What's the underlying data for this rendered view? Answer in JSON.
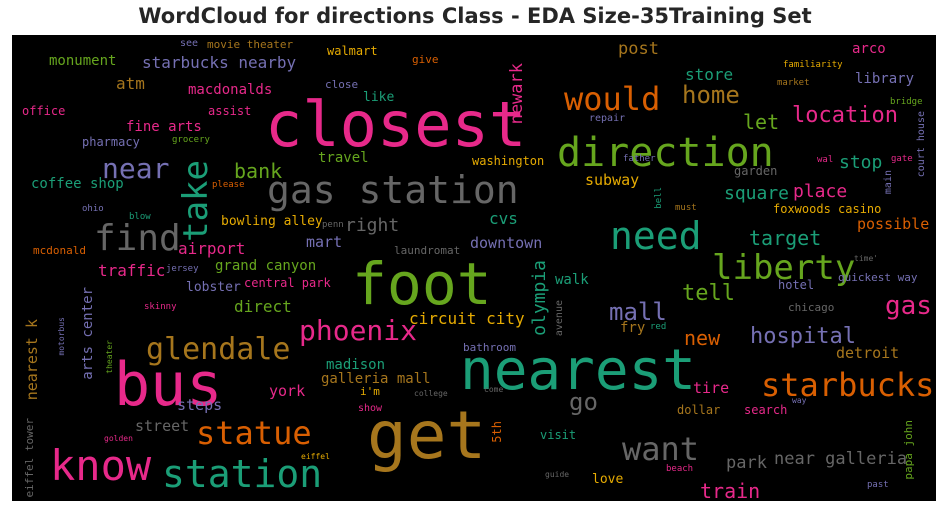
{
  "title": "WordCloud for directions Class - EDA Size-35Training Set",
  "words": [
    {
      "id": "closest",
      "text": "closest",
      "color": "#e7298a"
    },
    {
      "id": "nearest",
      "text": "nearest",
      "color": "#1b9e77"
    },
    {
      "id": "get",
      "text": "get",
      "color": "#a6761d"
    },
    {
      "id": "foot",
      "text": "foot",
      "color": "#66a61e"
    },
    {
      "id": "bus",
      "text": "bus",
      "color": "#e7298a"
    },
    {
      "id": "direction",
      "text": "direction",
      "color": "#66a61e"
    },
    {
      "id": "gas-station",
      "text": "gas station",
      "color": "#666666"
    },
    {
      "id": "know",
      "text": "know",
      "color": "#e7298a"
    },
    {
      "id": "station",
      "text": "station",
      "color": "#1b9e77"
    },
    {
      "id": "need",
      "text": "need",
      "color": "#1b9e77"
    },
    {
      "id": "find",
      "text": "find",
      "color": "#666666"
    },
    {
      "id": "take",
      "text": "take",
      "color": "#1b9e77"
    },
    {
      "id": "liberty",
      "text": "liberty",
      "color": "#66a61e"
    },
    {
      "id": "starbucks",
      "text": "starbucks",
      "color": "#d95f02"
    },
    {
      "id": "statue",
      "text": "statue",
      "color": "#d95f02"
    },
    {
      "id": "glendale",
      "text": "glendale",
      "color": "#a6761d"
    },
    {
      "id": "would",
      "text": "would",
      "color": "#d95f02"
    },
    {
      "id": "want",
      "text": "want",
      "color": "#666666"
    },
    {
      "id": "near",
      "text": "near",
      "color": "#7570b3"
    },
    {
      "id": "phoenix",
      "text": "phoenix",
      "color": "#e7298a"
    },
    {
      "id": "gas",
      "text": "gas",
      "color": "#e7298a"
    },
    {
      "id": "home",
      "text": "home",
      "color": "#a6761d"
    },
    {
      "id": "location",
      "text": "location",
      "color": "#e7298a"
    },
    {
      "id": "mall",
      "text": "mall",
      "color": "#7570b3"
    },
    {
      "id": "tell",
      "text": "tell",
      "color": "#66a61e"
    },
    {
      "id": "go",
      "text": "go",
      "color": "#666666"
    },
    {
      "id": "hospital",
      "text": "hospital",
      "color": "#7570b3"
    },
    {
      "id": "target",
      "text": "target",
      "color": "#1b9e77"
    },
    {
      "id": "new",
      "text": "new",
      "color": "#d95f02"
    },
    {
      "id": "train",
      "text": "train",
      "color": "#e7298a"
    },
    {
      "id": "bank",
      "text": "bank",
      "color": "#66a61e"
    },
    {
      "id": "find-unused",
      "text": "",
      "color": "#000000"
    },
    {
      "id": "square",
      "text": "square",
      "color": "#1b9e77"
    },
    {
      "id": "place",
      "text": "place",
      "color": "#e7298a"
    },
    {
      "id": "let",
      "text": "let",
      "color": "#66a61e"
    },
    {
      "id": "stop",
      "text": "stop",
      "color": "#1b9e77"
    },
    {
      "id": "store",
      "text": "store",
      "color": "#1b9e77"
    },
    {
      "id": "post",
      "text": "post",
      "color": "#a6761d"
    },
    {
      "id": "right",
      "text": "right",
      "color": "#666666"
    },
    {
      "id": "olympia",
      "text": "olympia",
      "color": "#1b9e77"
    },
    {
      "id": "newark",
      "text": "newark",
      "color": "#e7298a"
    },
    {
      "id": "park",
      "text": "park",
      "color": "#666666"
    },
    {
      "id": "near-galleria",
      "text": "near galleria",
      "color": "#666666"
    },
    {
      "id": "starbucks-nearby",
      "text": "starbucks nearby",
      "color": "#7570b3"
    },
    {
      "id": "airport",
      "text": "airport",
      "color": "#e7298a"
    },
    {
      "id": "traffic",
      "text": "traffic",
      "color": "#e7298a"
    },
    {
      "id": "cvs",
      "text": "cvs",
      "color": "#1b9e77"
    },
    {
      "id": "downtown",
      "text": "downtown",
      "color": "#7570b3"
    },
    {
      "id": "subway",
      "text": "subway",
      "color": "#e6ab02"
    },
    {
      "id": "atm",
      "text": "atm",
      "color": "#a6761d"
    },
    {
      "id": "fine-arts",
      "text": "fine arts",
      "color": "#e7298a"
    },
    {
      "id": "macdonalds",
      "text": "macdonalds",
      "color": "#e7298a"
    },
    {
      "id": "monument",
      "text": "monument",
      "color": "#66a61e"
    },
    {
      "id": "coffee-shop",
      "text": "coffee shop",
      "color": "#1b9e77"
    },
    {
      "id": "bowling-alley",
      "text": "bowling alley",
      "color": "#e6ab02"
    },
    {
      "id": "grand-canyon",
      "text": "grand canyon",
      "color": "#66a61e"
    },
    {
      "id": "mart",
      "text": "mart",
      "color": "#7570b3"
    },
    {
      "id": "lobster",
      "text": "lobster",
      "color": "#7570b3"
    },
    {
      "id": "central-park",
      "text": "central park",
      "color": "#e7298a"
    },
    {
      "id": "direct",
      "text": "direct",
      "color": "#66a61e"
    },
    {
      "id": "circuit-city",
      "text": "circuit city",
      "color": "#e6ab02"
    },
    {
      "id": "madison",
      "text": "madison",
      "color": "#1b9e77"
    },
    {
      "id": "galleria-mall",
      "text": "galleria mall",
      "color": "#a6761d"
    },
    {
      "id": "york",
      "text": "york",
      "color": "#e7298a"
    },
    {
      "id": "steps",
      "text": "steps",
      "color": "#7570b3"
    },
    {
      "id": "street",
      "text": "street",
      "color": "#666666"
    },
    {
      "id": "arts-center",
      "text": "arts center",
      "color": "#7570b3"
    },
    {
      "id": "nearest-k",
      "text": "nearest k",
      "color": "#a6761d"
    },
    {
      "id": "walk",
      "text": "walk",
      "color": "#1b9e77"
    },
    {
      "id": "fry",
      "text": "fry",
      "color": "#a6761d"
    },
    {
      "id": "detroit",
      "text": "detroit",
      "color": "#a6761d"
    },
    {
      "id": "tire",
      "text": "tire",
      "color": "#e7298a"
    },
    {
      "id": "possible",
      "text": "possible",
      "color": "#d95f02"
    },
    {
      "id": "foxwoods-casino",
      "text": "foxwoods casino",
      "color": "#e6ab02"
    },
    {
      "id": "library",
      "text": "library",
      "color": "#7570b3"
    },
    {
      "id": "arco",
      "text": "arco",
      "color": "#e7298a"
    },
    {
      "id": "travel",
      "text": "travel",
      "color": "#66a61e"
    },
    {
      "id": "washington",
      "text": "washington",
      "color": "#e6ab02"
    },
    {
      "id": "pharmacy",
      "text": "pharmacy",
      "color": "#7570b3"
    },
    {
      "id": "like",
      "text": "like",
      "color": "#1b9e77"
    },
    {
      "id": "assist",
      "text": "assist",
      "color": "#e7298a"
    },
    {
      "id": "walmart",
      "text": "walmart",
      "color": "#e6ab02"
    },
    {
      "id": "movie-theater",
      "text": "movie theater",
      "color": "#a6761d"
    },
    {
      "id": "give",
      "text": "give",
      "color": "#d95f02"
    },
    {
      "id": "close",
      "text": "close",
      "color": "#7570b3"
    },
    {
      "id": "office",
      "text": "office",
      "color": "#e7298a"
    },
    {
      "id": "mcdonald",
      "text": "mcdonald",
      "color": "#d95f02"
    },
    {
      "id": "laundromat",
      "text": "laundromat",
      "color": "#666666"
    },
    {
      "id": "visit",
      "text": "visit",
      "color": "#1b9e77"
    },
    {
      "id": "love",
      "text": "love",
      "color": "#e6ab02"
    },
    {
      "id": "dollar",
      "text": "dollar",
      "color": "#a6761d"
    },
    {
      "id": "search",
      "text": "search",
      "color": "#e7298a"
    },
    {
      "id": "garden",
      "text": "garden",
      "color": "#666666"
    },
    {
      "id": "hotel",
      "text": "hotel",
      "color": "#7570b3"
    },
    {
      "id": "chicago",
      "text": "chicago",
      "color": "#666666"
    },
    {
      "id": "quickest-way",
      "text": "quickest way",
      "color": "#7570b3"
    },
    {
      "id": "bathroom",
      "text": "bathroom",
      "color": "#7570b3"
    },
    {
      "id": "5th",
      "text": "5th",
      "color": "#d95f02"
    },
    {
      "id": "show",
      "text": "show",
      "color": "#e7298a"
    },
    {
      "id": "im",
      "text": "i'm",
      "color": "#e6ab02"
    },
    {
      "id": "eiffel-tower",
      "text": "eiffel tower",
      "color": "#666666"
    },
    {
      "id": "papa-john",
      "text": "papa john",
      "color": "#66a61e"
    },
    {
      "id": "avenue",
      "text": "avenue",
      "color": "#666666"
    },
    {
      "id": "court-house",
      "text": "court house",
      "color": "#7570b3"
    },
    {
      "id": "main",
      "text": "main",
      "color": "#7570b3"
    },
    {
      "id": "see",
      "text": "see",
      "color": "#7570b3"
    },
    {
      "id": "repair",
      "text": "repair",
      "color": "#7570b3"
    },
    {
      "id": "grocery",
      "text": "grocery",
      "color": "#66a61e"
    },
    {
      "id": "father",
      "text": "father",
      "color": "#7570b3"
    },
    {
      "id": "familiarity",
      "text": "familiarity",
      "color": "#e6ab02"
    },
    {
      "id": "market",
      "text": "market",
      "color": "#a6761d"
    },
    {
      "id": "bridge",
      "text": "bridge",
      "color": "#66a61e"
    },
    {
      "id": "wal",
      "text": "wal",
      "color": "#e7298a"
    },
    {
      "id": "gate",
      "text": "gate",
      "color": "#e7298a"
    },
    {
      "id": "please",
      "text": "please",
      "color": "#d95f02"
    },
    {
      "id": "bell",
      "text": "bell",
      "color": "#1b9e77"
    },
    {
      "id": "must",
      "text": "must",
      "color": "#a6761d"
    },
    {
      "id": "ohio",
      "text": "ohio",
      "color": "#7570b3"
    },
    {
      "id": "blow",
      "text": "blow",
      "color": "#1b9e77"
    },
    {
      "id": "penn",
      "text": "penn",
      "color": "#666666"
    },
    {
      "id": "jersey",
      "text": "jersey",
      "color": "#7570b3"
    },
    {
      "id": "skinny",
      "text": "skinny",
      "color": "#e7298a"
    },
    {
      "id": "motorbus",
      "text": "motorbus",
      "color": "#7570b3"
    },
    {
      "id": "theater",
      "text": "theater",
      "color": "#66a61e"
    },
    {
      "id": "time",
      "text": "time'",
      "color": "#666666"
    },
    {
      "id": "red",
      "text": "red",
      "color": "#1b9e77"
    },
    {
      "id": "college",
      "text": "college",
      "color": "#666666"
    },
    {
      "id": "come",
      "text": "come",
      "color": "#666666"
    },
    {
      "id": "way",
      "text": "way",
      "color": "#7570b3"
    },
    {
      "id": "eiffel",
      "text": "eiffel",
      "color": "#e6ab02"
    },
    {
      "id": "golden",
      "text": "golden",
      "color": "#e7298a"
    },
    {
      "id": "guide",
      "text": "guide",
      "color": "#666666"
    },
    {
      "id": "beach",
      "text": "beach",
      "color": "#e7298a"
    },
    {
      "id": "past",
      "text": "past",
      "color": "#7570b3"
    }
  ]
}
